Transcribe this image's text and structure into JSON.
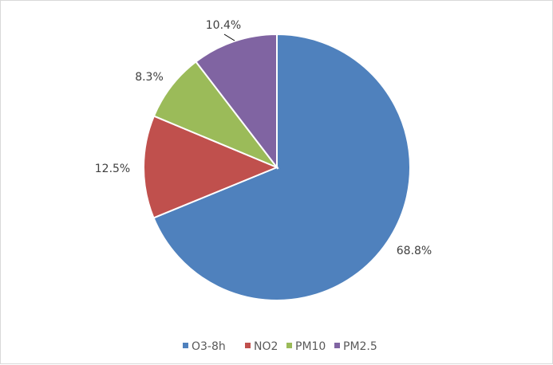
{
  "chart_data": {
    "type": "pie",
    "categories": [
      "O3-8h",
      "NO2",
      "PM10",
      "PM2.5"
    ],
    "values": [
      68.8,
      12.5,
      8.3,
      10.4
    ],
    "labels": [
      "68.8%",
      "12.5%",
      "8.3%",
      "10.4%"
    ],
    "colors": [
      "#4f81bd",
      "#c0504d",
      "#9bbb59",
      "#8064a2"
    ],
    "title": "",
    "legend_position": "bottom",
    "start_angle": "12 o'clock",
    "direction": "clockwise"
  }
}
